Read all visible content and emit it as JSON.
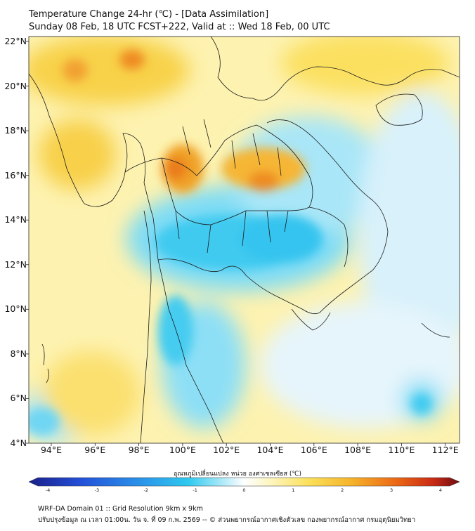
{
  "header": {
    "line1": "Temperature Change 24-hr (℃) - [Data Assimilation]",
    "line2": "Sunday 08 Feb, 18 UTC FCST+222, Valid at :: Wed 18 Feb, 00 UTC"
  },
  "map": {
    "lat_labels": [
      "22°N",
      "20°N",
      "18°N",
      "16°N",
      "14°N",
      "12°N",
      "10°N",
      "8°N",
      "6°N",
      "4°N"
    ],
    "lon_labels": [
      "94°E",
      "96°E",
      "98°E",
      "100°E",
      "102°E",
      "104°E",
      "106°E",
      "108°E",
      "110°E",
      "112°E"
    ],
    "lon_range": [
      93,
      112.5
    ],
    "lat_range": [
      4,
      22.2
    ],
    "colors": {
      "cold_deep": "#1e2fb0",
      "cold": "#2ec8ef",
      "neutral": "#ffffff",
      "warm": "#fbe05a",
      "hot": "#f08a1c",
      "hot_deep": "#7a0f12"
    }
  },
  "colorbar": {
    "title": "อุณหภูมิเปลี่ยนแปลง หน่วย องศาเซลเซียส (℃)",
    "ticks": [
      "-4",
      "-3",
      "-2",
      "-1",
      "0",
      "1",
      "2",
      "3",
      "4"
    ]
  },
  "footer": {
    "line1": "WRF-DA Domain 01 :: Grid Resolution 9km x 9km",
    "line2": "ปรับปรุงข้อมูล ณ เวลา 01:00น. วัน จ. ที่ 09 ก.พ. 2569 -- © ส่วนพยากรณ์อากาศเชิงตัวเลข กองพยากรณ์อากาศ กรมอุตุนิยมวิทยา"
  }
}
